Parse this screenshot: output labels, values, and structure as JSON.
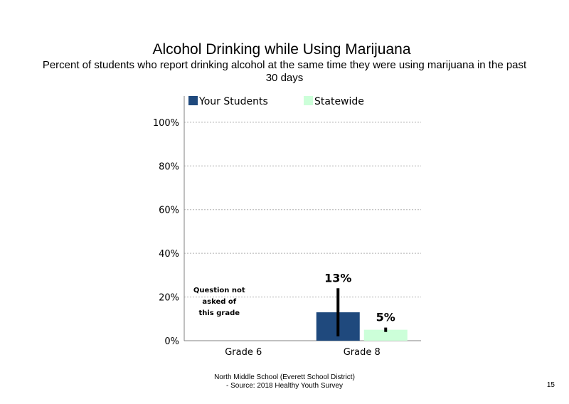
{
  "title": "Alcohol Drinking  while  Using  Marijuana",
  "subtitle": "Percent of students who report drinking alcohol at the same time they were using marijuana in the past 30 days",
  "footer": {
    "line1": "North  Middle  School  (Everett  School District)",
    "line2": "- Source:  2018  Healthy  Youth  Survey"
  },
  "page_number": "15",
  "chart_data": {
    "type": "bar",
    "title": "Alcohol Drinking  while  Using  Marijuana",
    "categories": [
      "Grade 6",
      "Grade 8"
    ],
    "series": [
      {
        "name": "Your Students",
        "color": "#1f497d",
        "values": [
          null,
          13
        ],
        "labels": [
          "",
          "13%"
        ],
        "error": [
          null,
          [
            2,
            24
          ]
        ]
      },
      {
        "name": "Statewide",
        "color": "#ccffd9",
        "values": [
          null,
          5
        ],
        "labels": [
          "",
          "5%"
        ],
        "error": [
          null,
          [
            4,
            6
          ]
        ]
      }
    ],
    "ylim": [
      0,
      112
    ],
    "yticks": [
      0,
      20,
      40,
      60,
      80,
      100
    ],
    "ytick_labels": [
      "0%",
      "20%",
      "40%",
      "60%",
      "80%",
      "100%"
    ],
    "grid": "horizontal dotted",
    "legend": "top",
    "annotations": [
      {
        "category": "Grade 6",
        "lines": [
          "Question not",
          "asked of",
          "this grade"
        ]
      }
    ]
  }
}
